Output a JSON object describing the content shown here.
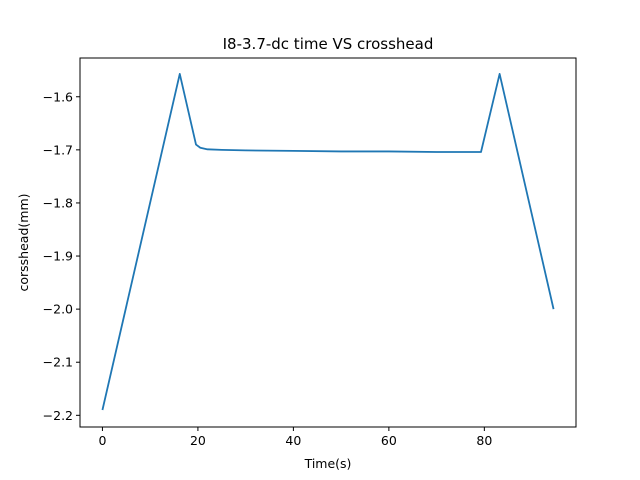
{
  "chart_data": {
    "type": "line",
    "title": "I8-3.7-dc time VS crosshead",
    "xlabel": "Time(s)",
    "ylabel": "corsshead(mm)",
    "xlim": [
      -4.7,
      99.2
    ],
    "ylim": [
      -2.222,
      -1.527
    ],
    "xticks": [
      0,
      20,
      40,
      60,
      80
    ],
    "xtick_labels": [
      "0",
      "20",
      "40",
      "60",
      "80"
    ],
    "yticks": [
      -2.2,
      -2.1,
      -2.0,
      -1.9,
      -1.8,
      -1.7,
      -1.6
    ],
    "ytick_labels": [
      "−2.2",
      "−2.1",
      "−2.0",
      "−1.9",
      "−1.8",
      "−1.7",
      "−1.6"
    ],
    "grid": false,
    "series": [
      {
        "name": "crosshead",
        "color": "#1f77b4",
        "x": [
          0,
          16.2,
          19.6,
          20.5,
          22,
          25,
          30,
          40,
          50,
          60,
          70,
          79.3,
          83.2,
          94.5
        ],
        "y": [
          -2.19,
          -1.557,
          -1.69,
          -1.696,
          -1.699,
          -1.7,
          -1.701,
          -1.702,
          -1.703,
          -1.703,
          -1.704,
          -1.704,
          -1.557,
          -2.0
        ]
      }
    ]
  }
}
